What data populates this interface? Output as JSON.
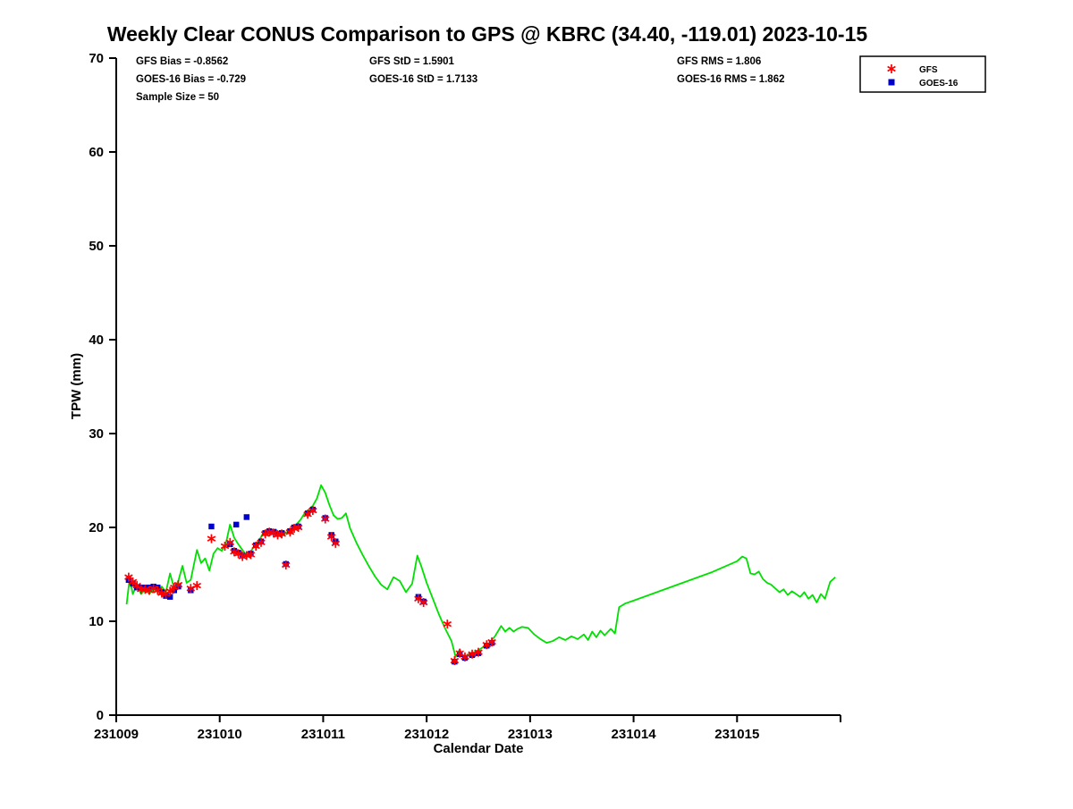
{
  "chart_data": {
    "type": "line",
    "title": "Weekly Clear CONUS Comparison to GPS @ KBRC (34.40, -119.01) 2023-10-15",
    "xlabel": "Calendar Date",
    "ylabel": "TPW (mm)",
    "xlim": [
      231009,
      231016
    ],
    "ylim": [
      0,
      70
    ],
    "xticks": [
      231009,
      231010,
      231011,
      231012,
      231013,
      231014,
      231015
    ],
    "yticks": [
      0,
      10,
      20,
      30,
      40,
      50,
      60,
      70
    ],
    "grid": false,
    "legend_position": "top-right",
    "stats": {
      "gfs_bias": "GFS Bias = -0.8562",
      "goes16_bias": "GOES-16 Bias = -0.729",
      "sample_size": "Sample Size = 50",
      "gfs_std": "GFS StD = 1.5901",
      "goes16_std": "GOES-16 StD = 1.7133",
      "gfs_rms": "GFS RMS = 1.806",
      "goes16_rms": "GOES-16 RMS = 1.862"
    },
    "legend": [
      {
        "label": "GFS",
        "marker": "asterisk",
        "color": "#ff0000"
      },
      {
        "label": "GOES-16",
        "marker": "square",
        "color": "#0000cc"
      }
    ],
    "series": [
      {
        "name": "GPS",
        "style": "line",
        "color": "#00e000",
        "points": [
          [
            231009.1,
            11.8
          ],
          [
            231009.13,
            14.6
          ],
          [
            231009.16,
            12.9
          ],
          [
            231009.2,
            13.9
          ],
          [
            231009.24,
            12.9
          ],
          [
            231009.28,
            13.4
          ],
          [
            231009.32,
            12.9
          ],
          [
            231009.36,
            13.5
          ],
          [
            231009.4,
            13.1
          ],
          [
            231009.44,
            13.7
          ],
          [
            231009.48,
            13.1
          ],
          [
            231009.52,
            15.1
          ],
          [
            231009.56,
            13.5
          ],
          [
            231009.6,
            14.3
          ],
          [
            231009.64,
            15.9
          ],
          [
            231009.68,
            14.1
          ],
          [
            231009.72,
            14.4
          ],
          [
            231009.78,
            17.6
          ],
          [
            231009.82,
            16.2
          ],
          [
            231009.86,
            16.7
          ],
          [
            231009.9,
            15.4
          ],
          [
            231009.94,
            17.2
          ],
          [
            231009.98,
            17.8
          ],
          [
            231010.02,
            17.5
          ],
          [
            231010.06,
            18.3
          ],
          [
            231010.1,
            20.3
          ],
          [
            231010.14,
            18.9
          ],
          [
            231010.18,
            18.2
          ],
          [
            231010.22,
            17.6
          ],
          [
            231010.26,
            17.0
          ],
          [
            231010.3,
            17.4
          ],
          [
            231010.34,
            18.2
          ],
          [
            231010.38,
            18.6
          ],
          [
            231010.42,
            19.4
          ],
          [
            231010.46,
            19.7
          ],
          [
            231010.5,
            19.5
          ],
          [
            231010.54,
            19.8
          ],
          [
            231010.58,
            19.4
          ],
          [
            231010.62,
            19.2
          ],
          [
            231010.66,
            19.6
          ],
          [
            231010.7,
            19.9
          ],
          [
            231010.74,
            20.3
          ],
          [
            231010.78,
            20.8
          ],
          [
            231010.82,
            21.5
          ],
          [
            231010.86,
            21.9
          ],
          [
            231010.9,
            22.3
          ],
          [
            231010.94,
            23.1
          ],
          [
            231010.98,
            24.5
          ],
          [
            231011.02,
            23.7
          ],
          [
            231011.06,
            22.4
          ],
          [
            231011.1,
            21.3
          ],
          [
            231011.14,
            20.9
          ],
          [
            231011.18,
            21.0
          ],
          [
            231011.22,
            21.5
          ],
          [
            231011.26,
            19.9
          ],
          [
            231011.32,
            18.4
          ],
          [
            231011.38,
            17.1
          ],
          [
            231011.44,
            15.9
          ],
          [
            231011.5,
            14.8
          ],
          [
            231011.56,
            13.9
          ],
          [
            231011.62,
            13.4
          ],
          [
            231011.68,
            14.7
          ],
          [
            231011.74,
            14.3
          ],
          [
            231011.8,
            13.1
          ],
          [
            231011.86,
            14.0
          ],
          [
            231011.91,
            17.0
          ],
          [
            231011.95,
            15.8
          ],
          [
            231012.0,
            14.1
          ],
          [
            231012.06,
            12.4
          ],
          [
            231012.12,
            10.7
          ],
          [
            231012.18,
            9.2
          ],
          [
            231012.24,
            7.9
          ],
          [
            231012.28,
            6.2
          ],
          [
            231012.32,
            7.0
          ],
          [
            231012.36,
            6.0
          ],
          [
            231012.4,
            6.5
          ],
          [
            231012.44,
            6.6
          ],
          [
            231012.48,
            6.8
          ],
          [
            231012.54,
            7.2
          ],
          [
            231012.6,
            7.6
          ],
          [
            231012.66,
            8.4
          ],
          [
            231012.72,
            9.5
          ],
          [
            231012.76,
            8.9
          ],
          [
            231012.8,
            9.3
          ],
          [
            231012.84,
            8.9
          ],
          [
            231012.88,
            9.2
          ],
          [
            231012.92,
            9.4
          ],
          [
            231012.98,
            9.3
          ],
          [
            231013.04,
            8.6
          ],
          [
            231013.1,
            8.1
          ],
          [
            231013.16,
            7.7
          ],
          [
            231013.22,
            7.9
          ],
          [
            231013.28,
            8.3
          ],
          [
            231013.34,
            8.0
          ],
          [
            231013.4,
            8.4
          ],
          [
            231013.46,
            8.1
          ],
          [
            231013.52,
            8.6
          ],
          [
            231013.56,
            8.0
          ],
          [
            231013.6,
            8.9
          ],
          [
            231013.64,
            8.3
          ],
          [
            231013.68,
            9.0
          ],
          [
            231013.72,
            8.5
          ],
          [
            231013.78,
            9.2
          ],
          [
            231013.82,
            8.7
          ],
          [
            231013.86,
            11.5
          ],
          [
            231013.92,
            11.9
          ],
          [
            231014.0,
            12.2
          ],
          [
            231014.25,
            13.2
          ],
          [
            231014.5,
            14.2
          ],
          [
            231014.75,
            15.2
          ],
          [
            231015.0,
            16.4
          ],
          [
            231015.05,
            16.9
          ],
          [
            231015.09,
            16.7
          ],
          [
            231015.13,
            15.1
          ],
          [
            231015.17,
            15.0
          ],
          [
            231015.21,
            15.3
          ],
          [
            231015.25,
            14.5
          ],
          [
            231015.29,
            14.1
          ],
          [
            231015.33,
            13.9
          ],
          [
            231015.37,
            13.5
          ],
          [
            231015.41,
            13.1
          ],
          [
            231015.45,
            13.4
          ],
          [
            231015.49,
            12.8
          ],
          [
            231015.53,
            13.2
          ],
          [
            231015.57,
            12.9
          ],
          [
            231015.61,
            12.6
          ],
          [
            231015.65,
            13.1
          ],
          [
            231015.69,
            12.4
          ],
          [
            231015.73,
            12.8
          ],
          [
            231015.77,
            12.0
          ],
          [
            231015.81,
            12.9
          ],
          [
            231015.85,
            12.4
          ],
          [
            231015.9,
            14.2
          ],
          [
            231015.95,
            14.7
          ]
        ]
      },
      {
        "name": "GFS",
        "style": "scatter",
        "marker": "asterisk",
        "color": "#ff0000",
        "points": [
          [
            231009.12,
            14.7
          ],
          [
            231009.16,
            14.2
          ],
          [
            231009.2,
            13.8
          ],
          [
            231009.24,
            13.4
          ],
          [
            231009.28,
            13.4
          ],
          [
            231009.32,
            13.3
          ],
          [
            231009.36,
            13.5
          ],
          [
            231009.4,
            13.3
          ],
          [
            231009.44,
            13.0
          ],
          [
            231009.48,
            12.9
          ],
          [
            231009.52,
            13.2
          ],
          [
            231009.56,
            13.6
          ],
          [
            231009.6,
            13.9
          ],
          [
            231009.72,
            13.5
          ],
          [
            231009.78,
            13.8
          ],
          [
            231009.92,
            18.8
          ],
          [
            231010.05,
            18.0
          ],
          [
            231010.1,
            18.4
          ],
          [
            231010.14,
            17.4
          ],
          [
            231010.18,
            17.2
          ],
          [
            231010.22,
            16.9
          ],
          [
            231010.26,
            17.0
          ],
          [
            231010.3,
            17.1
          ],
          [
            231010.35,
            18.0
          ],
          [
            231010.4,
            18.4
          ],
          [
            231010.44,
            19.3
          ],
          [
            231010.48,
            19.5
          ],
          [
            231010.52,
            19.4
          ],
          [
            231010.56,
            19.2
          ],
          [
            231010.6,
            19.3
          ],
          [
            231010.64,
            16.0
          ],
          [
            231010.68,
            19.5
          ],
          [
            231010.72,
            19.9
          ],
          [
            231010.76,
            20.0
          ],
          [
            231010.85,
            21.4
          ],
          [
            231010.9,
            21.8
          ],
          [
            231011.02,
            20.9
          ],
          [
            231011.08,
            19.0
          ],
          [
            231011.12,
            18.3
          ],
          [
            231011.92,
            12.4
          ],
          [
            231011.97,
            12.0
          ],
          [
            231012.2,
            9.7
          ],
          [
            231012.27,
            5.8
          ],
          [
            231012.32,
            6.6
          ],
          [
            231012.37,
            6.2
          ],
          [
            231012.44,
            6.5
          ],
          [
            231012.5,
            6.7
          ],
          [
            231012.58,
            7.5
          ],
          [
            231012.63,
            7.8
          ]
        ]
      },
      {
        "name": "GOES-16",
        "style": "scatter",
        "marker": "square",
        "color": "#0000cc",
        "points": [
          [
            231009.12,
            14.4
          ],
          [
            231009.16,
            14.0
          ],
          [
            231009.2,
            13.6
          ],
          [
            231009.24,
            13.6
          ],
          [
            231009.28,
            13.6
          ],
          [
            231009.32,
            13.6
          ],
          [
            231009.36,
            13.7
          ],
          [
            231009.4,
            13.6
          ],
          [
            231009.44,
            13.1
          ],
          [
            231009.48,
            12.7
          ],
          [
            231009.52,
            12.6
          ],
          [
            231009.56,
            13.3
          ],
          [
            231009.6,
            13.7
          ],
          [
            231009.72,
            13.3
          ],
          [
            231009.92,
            20.1
          ],
          [
            231010.1,
            18.2
          ],
          [
            231010.14,
            17.5
          ],
          [
            231010.16,
            20.3
          ],
          [
            231010.18,
            17.3
          ],
          [
            231010.22,
            17.0
          ],
          [
            231010.26,
            21.1
          ],
          [
            231010.3,
            17.2
          ],
          [
            231010.35,
            18.1
          ],
          [
            231010.4,
            18.5
          ],
          [
            231010.44,
            19.4
          ],
          [
            231010.48,
            19.6
          ],
          [
            231010.52,
            19.5
          ],
          [
            231010.56,
            19.3
          ],
          [
            231010.6,
            19.4
          ],
          [
            231010.64,
            16.1
          ],
          [
            231010.68,
            19.6
          ],
          [
            231010.72,
            20.0
          ],
          [
            231010.76,
            20.1
          ],
          [
            231010.85,
            21.5
          ],
          [
            231010.9,
            21.9
          ],
          [
            231011.02,
            21.0
          ],
          [
            231011.08,
            19.2
          ],
          [
            231011.12,
            18.5
          ],
          [
            231011.92,
            12.6
          ],
          [
            231011.97,
            12.1
          ],
          [
            231012.27,
            5.7
          ],
          [
            231012.32,
            6.5
          ],
          [
            231012.37,
            6.1
          ],
          [
            231012.44,
            6.4
          ],
          [
            231012.5,
            6.6
          ],
          [
            231012.58,
            7.4
          ],
          [
            231012.63,
            7.7
          ]
        ]
      }
    ]
  }
}
